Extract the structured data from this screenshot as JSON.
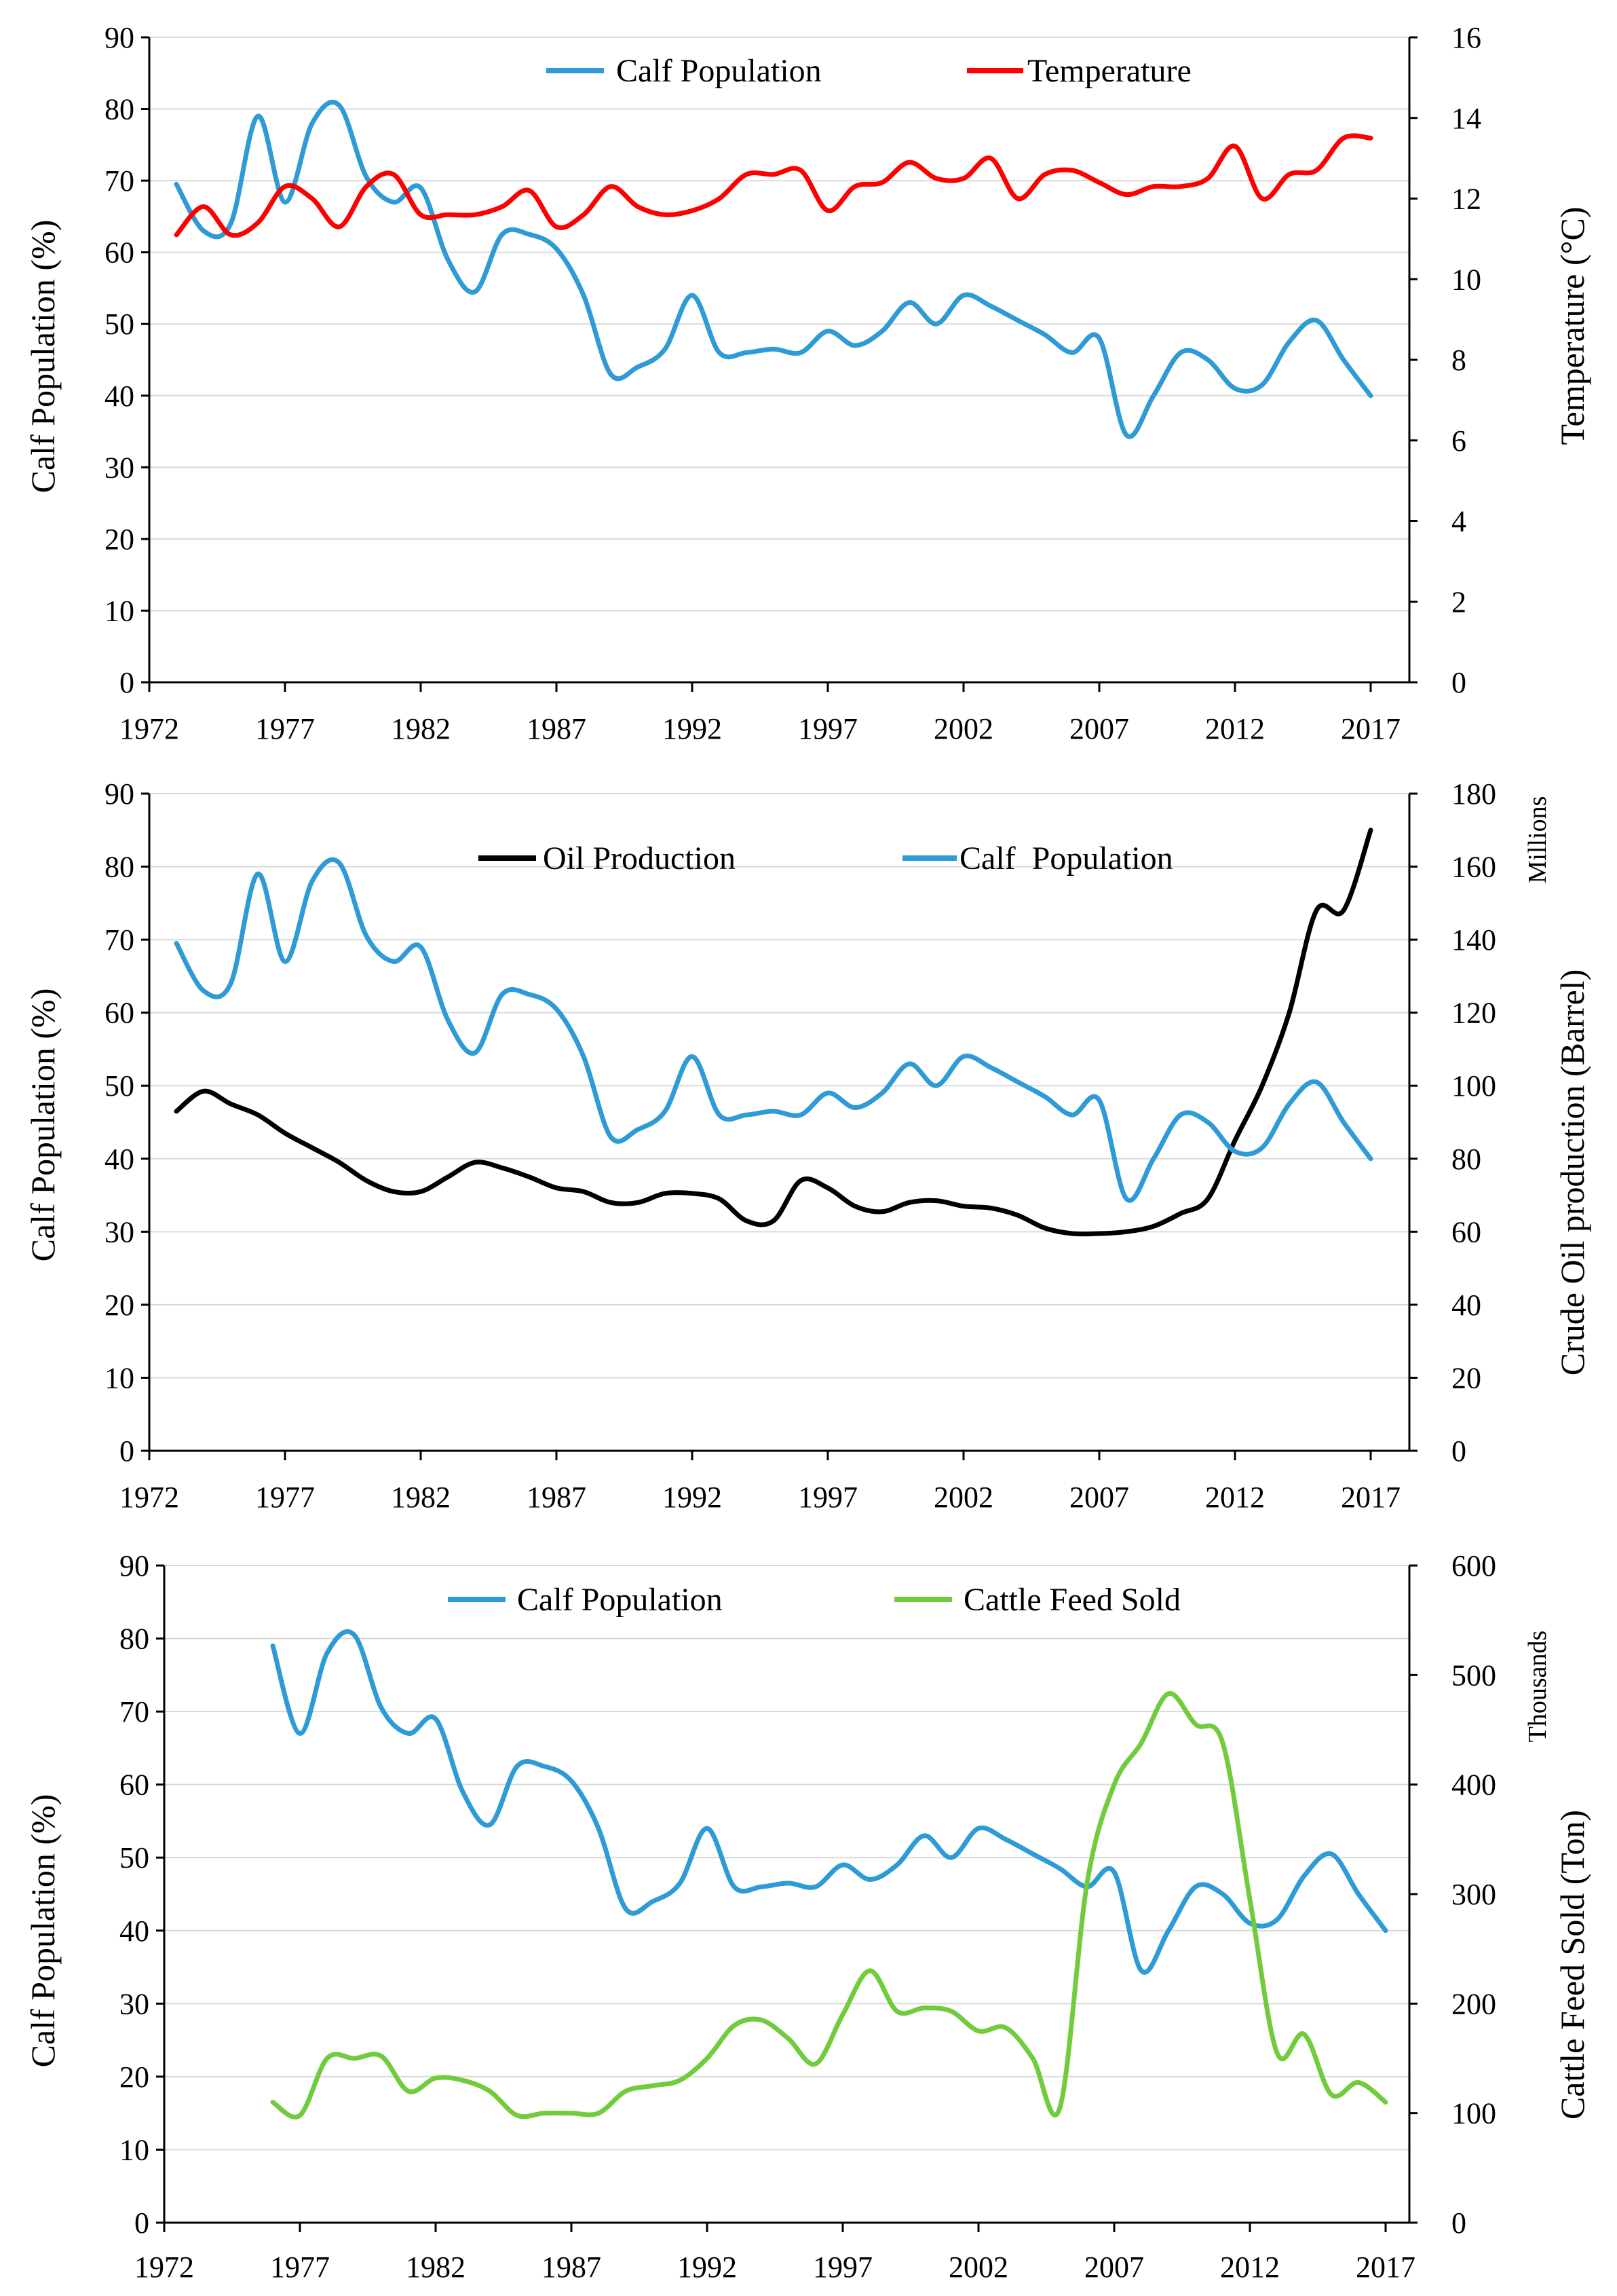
{
  "colors": {
    "calf": "#2e9ad6",
    "temperature": "#ff0000",
    "oil": "#000000",
    "feed": "#70cc3c"
  },
  "chart_data": [
    {
      "type": "line",
      "x_ticks": [
        "1972",
        "1977",
        "1982",
        "1987",
        "1992",
        "1997",
        "2002",
        "2007",
        "2012",
        "2017"
      ],
      "xlim": [
        1972,
        2017.8
      ],
      "ylabel": "Calf Population  (%)",
      "y_ticks": [
        "0",
        "10",
        "20",
        "30",
        "40",
        "50",
        "60",
        "70",
        "80",
        "90"
      ],
      "ylim": [
        0,
        90
      ],
      "ylabel_right": "Temperature (°C)",
      "y2_ticks": [
        "0",
        "2",
        "4",
        "6",
        "8",
        "10",
        "12",
        "14",
        "16"
      ],
      "y2lim": [
        0,
        16
      ],
      "series": [
        {
          "name": "Calf Population",
          "axis": "left",
          "color": "#2e9ad6",
          "x": [
            1973,
            1974,
            1975,
            1976,
            1977,
            1978,
            1979,
            1980,
            1981,
            1982,
            1983,
            1984,
            1985,
            1986,
            1987,
            1988,
            1989,
            1990,
            1991,
            1992,
            1993,
            1994,
            1995,
            1996,
            1997,
            1998,
            1999,
            2000,
            2001,
            2002,
            2003,
            2004,
            2005,
            2006,
            2007,
            2008,
            2009,
            2010,
            2011,
            2012,
            2013,
            2014,
            2015,
            2016,
            2017
          ],
          "values": [
            69.5,
            63,
            64,
            79,
            67,
            78,
            80.5,
            70.5,
            67,
            69,
            59,
            54.5,
            62.5,
            62.5,
            60.5,
            54,
            43,
            44,
            46.5,
            54,
            46,
            46,
            46.5,
            46,
            49,
            47,
            49,
            53,
            50,
            54,
            52.5,
            50.5,
            48.5,
            46,
            48,
            34.5,
            40,
            46,
            45,
            41,
            41.5,
            47.5,
            50.5,
            45,
            40
          ]
        },
        {
          "name": "Temperature",
          "axis": "right",
          "color": "#ff0000",
          "x": [
            1973,
            1974,
            1975,
            1976,
            1977,
            1978,
            1979,
            1980,
            1981,
            1982,
            1983,
            1984,
            1985,
            1986,
            1987,
            1988,
            1989,
            1990,
            1991,
            1992,
            1993,
            1994,
            1995,
            1996,
            1997,
            1998,
            1999,
            2000,
            2001,
            2002,
            2003,
            2004,
            2005,
            2006,
            2007,
            2008,
            2009,
            2010,
            2011,
            2012,
            2013,
            2014,
            2015,
            2016,
            2017
          ],
          "values": [
            11.1,
            11.8,
            11.1,
            11.4,
            12.3,
            12.0,
            11.3,
            12.3,
            12.6,
            11.6,
            11.6,
            11.6,
            11.8,
            12.2,
            11.3,
            11.6,
            12.3,
            11.8,
            11.6,
            11.7,
            12.0,
            12.6,
            12.6,
            12.7,
            11.7,
            12.3,
            12.4,
            12.9,
            12.5,
            12.5,
            13.0,
            12.0,
            12.6,
            12.7,
            12.4,
            12.1,
            12.3,
            12.3,
            12.5,
            13.3,
            12.0,
            12.6,
            12.7,
            13.5,
            13.5
          ]
        }
      ]
    },
    {
      "type": "line",
      "x_ticks": [
        "1972",
        "1977",
        "1982",
        "1987",
        "1992",
        "1997",
        "2002",
        "2007",
        "2012",
        "2017"
      ],
      "xlim": [
        1972,
        2017.8
      ],
      "ylabel": "Calf Population  (%)",
      "y_ticks": [
        "0",
        "10",
        "20",
        "30",
        "40",
        "50",
        "60",
        "70",
        "80",
        "90"
      ],
      "ylim": [
        0,
        90
      ],
      "ylabel_right": "Crude Oil production (Barrel)",
      "ylabel_right_units": "Millions",
      "y2_ticks": [
        "0",
        "20",
        "40",
        "60",
        "80",
        "100",
        "120",
        "140",
        "160",
        "180"
      ],
      "y2lim": [
        0,
        180
      ],
      "series": [
        {
          "name": "Oil Production",
          "axis": "right",
          "color": "#000000",
          "x": [
            1973,
            1974,
            1975,
            1976,
            1977,
            1978,
            1979,
            1980,
            1981,
            1982,
            1983,
            1984,
            1985,
            1986,
            1987,
            1988,
            1989,
            1990,
            1991,
            1992,
            1993,
            1994,
            1995,
            1996,
            1997,
            1998,
            1999,
            2000,
            2001,
            2002,
            2003,
            2004,
            2005,
            2006,
            2007,
            2008,
            2009,
            2010,
            2011,
            2012,
            2013,
            2014,
            2015,
            2016,
            2017
          ],
          "values": [
            93,
            98.5,
            95,
            92,
            87,
            83,
            79,
            74,
            71,
            71,
            75,
            79,
            77.5,
            75,
            72,
            71,
            68,
            68,
            70.5,
            70.5,
            69,
            63,
            63,
            74,
            72,
            67,
            65.5,
            68,
            68.5,
            67,
            66.5,
            64.5,
            61,
            59.5,
            59.5,
            60,
            61.5,
            65,
            69,
            85,
            100,
            120,
            148,
            148,
            170
          ]
        },
        {
          "name": "Calf  Population",
          "axis": "left",
          "color": "#2e9ad6",
          "x": [
            1973,
            1974,
            1975,
            1976,
            1977,
            1978,
            1979,
            1980,
            1981,
            1982,
            1983,
            1984,
            1985,
            1986,
            1987,
            1988,
            1989,
            1990,
            1991,
            1992,
            1993,
            1994,
            1995,
            1996,
            1997,
            1998,
            1999,
            2000,
            2001,
            2002,
            2003,
            2004,
            2005,
            2006,
            2007,
            2008,
            2009,
            2010,
            2011,
            2012,
            2013,
            2014,
            2015,
            2016,
            2017
          ],
          "values": [
            69.5,
            63,
            64,
            79,
            67,
            78,
            80.5,
            70.5,
            67,
            69,
            59,
            54.5,
            62.5,
            62.5,
            60.5,
            54,
            43,
            44,
            46.5,
            54,
            46,
            46,
            46.5,
            46,
            49,
            47,
            49,
            53,
            50,
            54,
            52.5,
            50.5,
            48.5,
            46,
            48,
            34.5,
            40,
            46,
            45,
            41,
            41.5,
            47.5,
            50.5,
            45,
            40
          ]
        }
      ]
    },
    {
      "type": "line",
      "x_ticks": [
        "1972",
        "1977",
        "1982",
        "1987",
        "1992",
        "1997",
        "2002",
        "2007",
        "2012",
        "2017"
      ],
      "xlim": [
        1972,
        2017.8
      ],
      "ylabel": "Calf Population  (%)",
      "y_ticks": [
        "0",
        "10",
        "20",
        "30",
        "40",
        "50",
        "60",
        "70",
        "80",
        "90"
      ],
      "ylim": [
        0,
        90
      ],
      "ylabel_right": "Cattle Feed Sold (Ton)",
      "ylabel_right_units": "Thousands",
      "y2_ticks": [
        "0",
        "100",
        "200",
        "300",
        "400",
        "500",
        "600"
      ],
      "y2lim": [
        0,
        600
      ],
      "series": [
        {
          "name": "Calf Population",
          "axis": "left",
          "color": "#2e9ad6",
          "x": [
            1976,
            1977,
            1978,
            1979,
            1980,
            1981,
            1982,
            1983,
            1984,
            1985,
            1986,
            1987,
            1988,
            1989,
            1990,
            1991,
            1992,
            1993,
            1994,
            1995,
            1996,
            1997,
            1998,
            1999,
            2000,
            2001,
            2002,
            2003,
            2004,
            2005,
            2006,
            2007,
            2008,
            2009,
            2010,
            2011,
            2012,
            2013,
            2014,
            2015,
            2016,
            2017
          ],
          "values": [
            79,
            67,
            78,
            80.5,
            70.5,
            67,
            69,
            59,
            54.5,
            62.5,
            62.5,
            60.5,
            54,
            43,
            44,
            46.5,
            54,
            46,
            46,
            46.5,
            46,
            49,
            47,
            49,
            53,
            50,
            54,
            52.5,
            50.5,
            48.5,
            46,
            48,
            34.5,
            40,
            46,
            45,
            41,
            41.5,
            47.5,
            50.5,
            45,
            40
          ]
        },
        {
          "name": "Cattle Feed Sold",
          "axis": "right",
          "color": "#70cc3c",
          "x": [
            1976,
            1977,
            1978,
            1979,
            1980,
            1981,
            1982,
            1983,
            1984,
            1985,
            1986,
            1987,
            1988,
            1989,
            1990,
            1991,
            1992,
            1993,
            1994,
            1995,
            1996,
            1997,
            1998,
            1999,
            2000,
            2001,
            2002,
            2003,
            2004,
            2005,
            2006,
            2007,
            2008,
            2009,
            2010,
            2011,
            2012,
            2013,
            2014,
            2015,
            2016,
            2017
          ],
          "values": [
            110,
            98,
            150,
            150,
            152,
            120,
            132,
            130,
            120,
            98,
            100,
            100,
            100,
            120,
            125,
            130,
            150,
            180,
            185,
            168,
            145,
            190,
            230,
            193,
            196,
            193,
            175,
            178,
            150,
            105,
            310,
            400,
            438,
            483,
            455,
            438,
            295,
            155,
            172,
            117,
            128,
            110
          ]
        }
      ]
    }
  ]
}
